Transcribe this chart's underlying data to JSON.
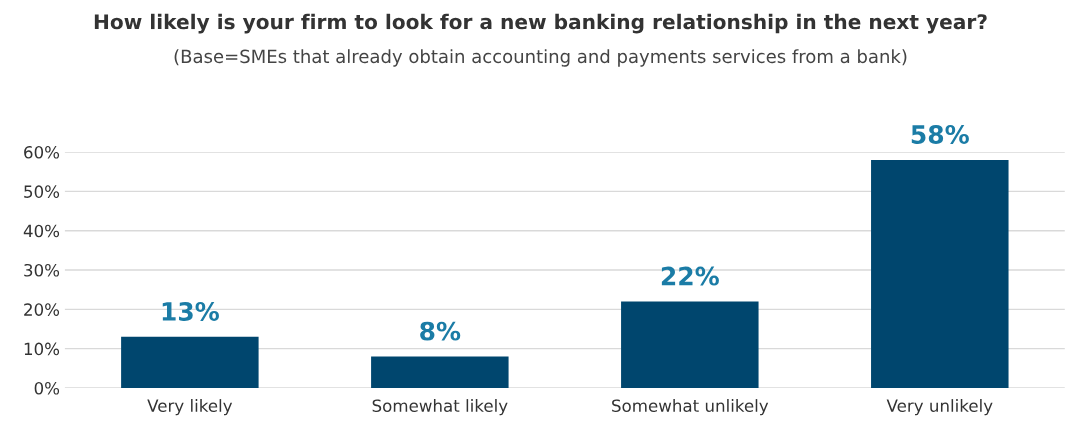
{
  "chart_data": {
    "type": "bar",
    "title": "How likely is your firm to look for a new banking relationship in the next year?",
    "subtitle": "(Base=SMEs that already obtain accounting and payments services from a bank)",
    "categories": [
      "Very likely",
      "Somewhat likely",
      "Somewhat unlikely",
      "Very unlikely"
    ],
    "values": [
      13,
      8,
      22,
      58
    ],
    "value_labels": [
      "13%",
      "8%",
      "22%",
      "58%"
    ],
    "color": "#00466e",
    "ylim": [
      0,
      60
    ],
    "yticks": [
      {
        "value": 0,
        "label": "0%"
      },
      {
        "value": 10,
        "label": "10%"
      },
      {
        "value": 20,
        "label": "20%"
      },
      {
        "value": 30,
        "label": "30%"
      },
      {
        "value": 40,
        "label": "40%"
      },
      {
        "value": 50,
        "label": "50%"
      },
      {
        "value": 60,
        "label": "60%"
      }
    ],
    "grid": "y",
    "legend": false
  }
}
